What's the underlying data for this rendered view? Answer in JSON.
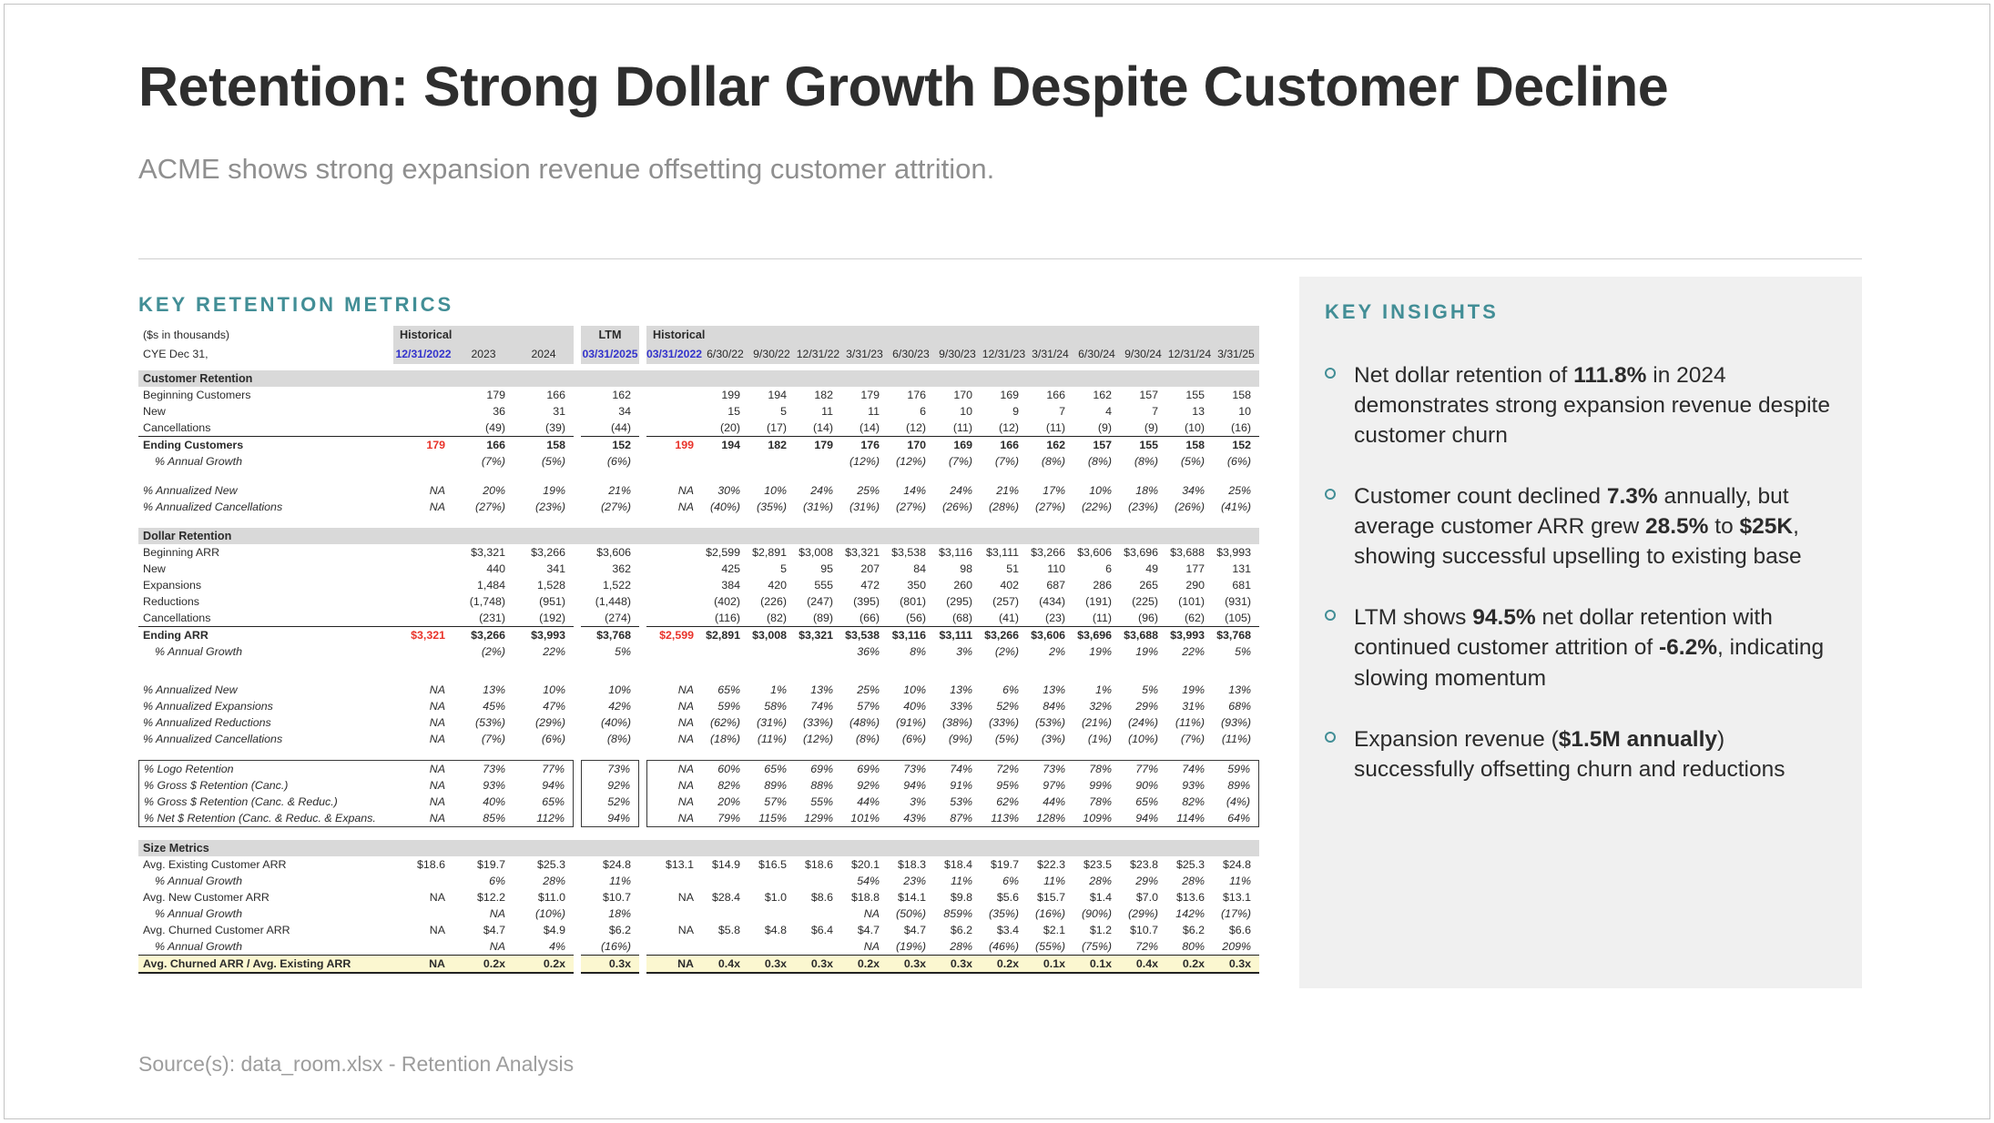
{
  "slide": {
    "title": "Retention: Strong Dollar Growth Despite Customer Decline",
    "subtitle": "ACME shows strong expansion revenue offsetting customer attrition.",
    "source": "Source(s): data_room.xlsx - Retention Analysis"
  },
  "colors": {
    "teal": "#428E96",
    "blue": "#3333CC",
    "red": "#E9332A",
    "band": "#D9D9D9",
    "panel": "#F0F0F0",
    "yellow": "#FBF7D0"
  },
  "table": {
    "heading": "KEY RETENTION METRICS",
    "corner_top": "($s in thousands)",
    "corner_bottom": "CYE Dec 31,",
    "group_annual": "Historical",
    "group_ltm": "LTM",
    "group_quarterly": "Historical",
    "columns_annual": [
      "12/31/2022",
      "2023",
      "2024"
    ],
    "column_ltm": "03/31/2025",
    "columns_quarterly": [
      "03/31/2022",
      "6/30/22",
      "9/30/22",
      "12/31/22",
      "3/31/23",
      "6/30/23",
      "9/30/23",
      "12/31/23",
      "3/31/24",
      "6/30/24",
      "9/30/24",
      "12/31/24",
      "3/31/25"
    ],
    "rows": [
      {
        "label": "Customer Retention",
        "style": "section"
      },
      {
        "label": "Beginning Customers",
        "style": "data",
        "values": [
          "",
          "179",
          "166",
          "162",
          "",
          "199",
          "194",
          "182",
          "179",
          "176",
          "170",
          "169",
          "166",
          "162",
          "157",
          "155",
          "158"
        ]
      },
      {
        "label": "New",
        "style": "data",
        "values": [
          "",
          "36",
          "31",
          "34",
          "",
          "15",
          "5",
          "11",
          "11",
          "6",
          "10",
          "9",
          "7",
          "4",
          "7",
          "13",
          "10"
        ]
      },
      {
        "label": "Cancellations",
        "style": "data",
        "values": [
          "",
          "(49)",
          "(39)",
          "(44)",
          "",
          "(20)",
          "(17)",
          "(14)",
          "(14)",
          "(12)",
          "(11)",
          "(12)",
          "(11)",
          "(9)",
          "(9)",
          "(10)",
          "(16)"
        ]
      },
      {
        "label": "Ending Customers",
        "style": "total",
        "values": [
          "179",
          "166",
          "158",
          "152",
          "199",
          "194",
          "182",
          "179",
          "176",
          "170",
          "169",
          "166",
          "162",
          "157",
          "155",
          "158",
          "152"
        ]
      },
      {
        "label": "% Annual Growth",
        "style": "growth",
        "values": [
          "",
          "(7%)",
          "(5%)",
          "(6%)",
          "",
          "",
          "",
          "",
          "(12%)",
          "(12%)",
          "(7%)",
          "(7%)",
          "(8%)",
          "(8%)",
          "(8%)",
          "(5%)",
          "(6%)"
        ]
      },
      {
        "style": "spacer"
      },
      {
        "label": "% Annualized New",
        "style": "pct",
        "values": [
          "NA",
          "20%",
          "19%",
          "21%",
          "NA",
          "30%",
          "10%",
          "24%",
          "25%",
          "14%",
          "24%",
          "21%",
          "17%",
          "10%",
          "18%",
          "34%",
          "25%"
        ]
      },
      {
        "label": "% Annualized Cancellations",
        "style": "pct",
        "values": [
          "NA",
          "(27%)",
          "(23%)",
          "(27%)",
          "NA",
          "(40%)",
          "(35%)",
          "(31%)",
          "(31%)",
          "(27%)",
          "(26%)",
          "(28%)",
          "(27%)",
          "(22%)",
          "(23%)",
          "(26%)",
          "(41%)"
        ]
      },
      {
        "style": "spacer"
      },
      {
        "label": "Dollar Retention",
        "style": "section"
      },
      {
        "label": "Beginning ARR",
        "style": "data",
        "values": [
          "",
          "$3,321",
          "$3,266",
          "$3,606",
          "",
          "$2,599",
          "$2,891",
          "$3,008",
          "$3,321",
          "$3,538",
          "$3,116",
          "$3,111",
          "$3,266",
          "$3,606",
          "$3,696",
          "$3,688",
          "$3,993"
        ]
      },
      {
        "label": "New",
        "style": "data",
        "values": [
          "",
          "440",
          "341",
          "362",
          "",
          "425",
          "5",
          "95",
          "207",
          "84",
          "98",
          "51",
          "110",
          "6",
          "49",
          "177",
          "131"
        ]
      },
      {
        "label": "Expansions",
        "style": "data",
        "values": [
          "",
          "1,484",
          "1,528",
          "1,522",
          "",
          "384",
          "420",
          "555",
          "472",
          "350",
          "260",
          "402",
          "687",
          "286",
          "265",
          "290",
          "681"
        ]
      },
      {
        "label": "Reductions",
        "style": "data",
        "values": [
          "",
          "(1,748)",
          "(951)",
          "(1,448)",
          "",
          "(402)",
          "(226)",
          "(247)",
          "(395)",
          "(801)",
          "(295)",
          "(257)",
          "(434)",
          "(191)",
          "(225)",
          "(101)",
          "(931)"
        ]
      },
      {
        "label": "Cancellations",
        "style": "data",
        "values": [
          "",
          "(231)",
          "(192)",
          "(274)",
          "",
          "(116)",
          "(82)",
          "(89)",
          "(66)",
          "(56)",
          "(68)",
          "(41)",
          "(23)",
          "(11)",
          "(96)",
          "(62)",
          "(105)"
        ]
      },
      {
        "label": "Ending ARR",
        "style": "total",
        "values": [
          "$3,321",
          "$3,266",
          "$3,993",
          "$3,768",
          "$2,599",
          "$2,891",
          "$3,008",
          "$3,321",
          "$3,538",
          "$3,116",
          "$3,111",
          "$3,266",
          "$3,606",
          "$3,696",
          "$3,688",
          "$3,993",
          "$3,768"
        ]
      },
      {
        "label": "% Annual Growth",
        "style": "growth",
        "values": [
          "",
          "(2%)",
          "22%",
          "5%",
          "",
          "",
          "",
          "",
          "36%",
          "8%",
          "3%",
          "(2%)",
          "2%",
          "19%",
          "19%",
          "22%",
          "5%"
        ]
      },
      {
        "style": "spacer",
        "tall": true
      },
      {
        "label": "% Annualized New",
        "style": "pct",
        "values": [
          "NA",
          "13%",
          "10%",
          "10%",
          "NA",
          "65%",
          "1%",
          "13%",
          "25%",
          "10%",
          "13%",
          "6%",
          "13%",
          "1%",
          "5%",
          "19%",
          "13%"
        ]
      },
      {
        "label": "% Annualized Expansions",
        "style": "pct",
        "values": [
          "NA",
          "45%",
          "47%",
          "42%",
          "NA",
          "59%",
          "58%",
          "74%",
          "57%",
          "40%",
          "33%",
          "52%",
          "84%",
          "32%",
          "29%",
          "31%",
          "68%"
        ]
      },
      {
        "label": "% Annualized Reductions",
        "style": "pct",
        "values": [
          "NA",
          "(53%)",
          "(29%)",
          "(40%)",
          "NA",
          "(62%)",
          "(31%)",
          "(33%)",
          "(48%)",
          "(91%)",
          "(38%)",
          "(33%)",
          "(53%)",
          "(21%)",
          "(24%)",
          "(11%)",
          "(93%)"
        ]
      },
      {
        "label": "% Annualized Cancellations",
        "style": "pct",
        "values": [
          "NA",
          "(7%)",
          "(6%)",
          "(8%)",
          "NA",
          "(18%)",
          "(11%)",
          "(12%)",
          "(8%)",
          "(6%)",
          "(9%)",
          "(5%)",
          "(3%)",
          "(1%)",
          "(10%)",
          "(7%)",
          "(11%)"
        ]
      },
      {
        "style": "spacer"
      },
      {
        "label": "% Logo Retention",
        "style": "boxed",
        "values": [
          "NA",
          "73%",
          "77%",
          "73%",
          "NA",
          "60%",
          "65%",
          "69%",
          "69%",
          "73%",
          "74%",
          "72%",
          "73%",
          "78%",
          "77%",
          "74%",
          "59%"
        ]
      },
      {
        "label": "% Gross $ Retention (Canc.)",
        "style": "boxed",
        "values": [
          "NA",
          "93%",
          "94%",
          "92%",
          "NA",
          "82%",
          "89%",
          "88%",
          "92%",
          "94%",
          "91%",
          "95%",
          "97%",
          "99%",
          "90%",
          "93%",
          "89%"
        ]
      },
      {
        "label": "% Gross $ Retention (Canc. & Reduc.)",
        "style": "boxed",
        "values": [
          "NA",
          "40%",
          "65%",
          "52%",
          "NA",
          "20%",
          "57%",
          "55%",
          "44%",
          "3%",
          "53%",
          "62%",
          "44%",
          "78%",
          "65%",
          "82%",
          "(4%)"
        ]
      },
      {
        "label": "% Net $ Retention (Canc. & Reduc. & Expans.",
        "style": "boxed",
        "values": [
          "NA",
          "85%",
          "112%",
          "94%",
          "NA",
          "79%",
          "115%",
          "129%",
          "101%",
          "43%",
          "87%",
          "113%",
          "128%",
          "109%",
          "94%",
          "114%",
          "64%"
        ]
      },
      {
        "style": "spacer"
      },
      {
        "label": "Size Metrics",
        "style": "section"
      },
      {
        "label": "Avg. Existing Customer ARR",
        "style": "data",
        "values": [
          "$18.6",
          "$19.7",
          "$25.3",
          "$24.8",
          "$13.1",
          "$14.9",
          "$16.5",
          "$18.6",
          "$20.1",
          "$18.3",
          "$18.4",
          "$19.7",
          "$22.3",
          "$23.5",
          "$23.8",
          "$25.3",
          "$24.8"
        ]
      },
      {
        "label": "% Annual Growth",
        "style": "growth",
        "values": [
          "",
          "6%",
          "28%",
          "11%",
          "",
          "",
          "",
          "",
          "54%",
          "23%",
          "11%",
          "6%",
          "11%",
          "28%",
          "29%",
          "28%",
          "11%"
        ]
      },
      {
        "label": "Avg. New Customer ARR",
        "style": "data",
        "values": [
          "NA",
          "$12.2",
          "$11.0",
          "$10.7",
          "NA",
          "$28.4",
          "$1.0",
          "$8.6",
          "$18.8",
          "$14.1",
          "$9.8",
          "$5.6",
          "$15.7",
          "$1.4",
          "$7.0",
          "$13.6",
          "$13.1"
        ]
      },
      {
        "label": "% Annual Growth",
        "style": "growth",
        "values": [
          "",
          "NA",
          "(10%)",
          "18%",
          "",
          "",
          "",
          "",
          "NA",
          "(50%)",
          "859%",
          "(35%)",
          "(16%)",
          "(90%)",
          "(29%)",
          "142%",
          "(17%)"
        ]
      },
      {
        "label": "Avg. Churned Customer ARR",
        "style": "data",
        "values": [
          "NA",
          "$4.7",
          "$4.9",
          "$6.2",
          "NA",
          "$5.8",
          "$4.8",
          "$6.4",
          "$4.7",
          "$4.7",
          "$6.2",
          "$3.4",
          "$2.1",
          "$1.2",
          "$10.7",
          "$6.2",
          "$6.6"
        ]
      },
      {
        "label": "% Annual Growth",
        "style": "growth",
        "values": [
          "",
          "NA",
          "4%",
          "(16%)",
          "",
          "",
          "",
          "",
          "NA",
          "(19%)",
          "28%",
          "(46%)",
          "(55%)",
          "(75%)",
          "72%",
          "80%",
          "209%"
        ]
      },
      {
        "label": "Avg. Churned ARR / Avg. Existing ARR",
        "style": "highlight",
        "values": [
          "NA",
          "0.2x",
          "0.2x",
          "0.3x",
          "NA",
          "0.4x",
          "0.3x",
          "0.3x",
          "0.2x",
          "0.3x",
          "0.3x",
          "0.2x",
          "0.1x",
          "0.1x",
          "0.4x",
          "0.2x",
          "0.3x"
        ]
      }
    ]
  },
  "insights": {
    "heading": "KEY INSIGHTS",
    "items": [
      {
        "segments": [
          {
            "text": "Net dollar retention of "
          },
          {
            "text": "111.8%",
            "bold": true
          },
          {
            "text": " in 2024 demonstrates strong expansion revenue despite customer churn"
          }
        ]
      },
      {
        "segments": [
          {
            "text": "Customer count declined "
          },
          {
            "text": "7.3%",
            "bold": true
          },
          {
            "text": " annually, but average customer ARR grew "
          },
          {
            "text": "28.5%",
            "bold": true
          },
          {
            "text": " to "
          },
          {
            "text": "$25K",
            "bold": true
          },
          {
            "text": ", showing successful upselling to existing base"
          }
        ]
      },
      {
        "segments": [
          {
            "text": "LTM shows "
          },
          {
            "text": "94.5%",
            "bold": true
          },
          {
            "text": " net dollar retention with continued customer attrition of "
          },
          {
            "text": "-6.2%",
            "bold": true
          },
          {
            "text": ", indicating slowing momentum"
          }
        ]
      },
      {
        "segments": [
          {
            "text": "Expansion revenue ("
          },
          {
            "text": "$1.5M annually",
            "bold": true
          },
          {
            "text": ") successfully offsetting churn and reductions"
          }
        ]
      }
    ]
  }
}
